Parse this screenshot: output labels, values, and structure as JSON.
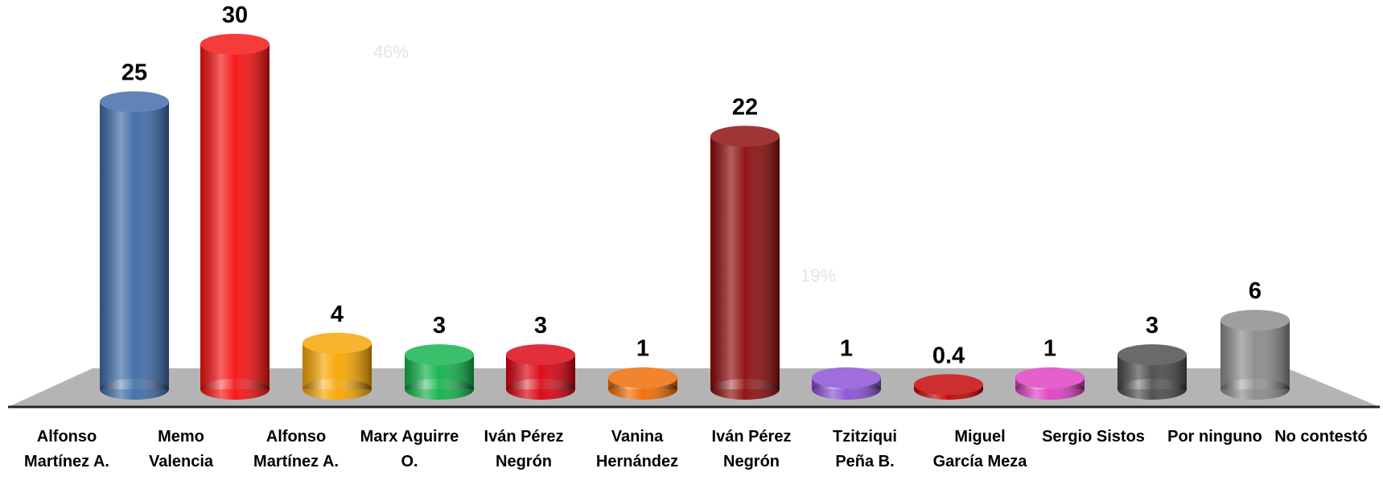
{
  "chart_data": {
    "type": "bar",
    "categories": [
      "Alfonso Martínez A.",
      "Memo Valencia",
      "Alfonso Martínez A.",
      "Marx Aguirre O.",
      "Iván Pérez Negrón",
      "Vanina Hernández",
      "Iván Pérez Negrón",
      "Tzitziqui Peña B.",
      "Miguel García Meza",
      "Sergio Sistos",
      "Por ninguno",
      "No contestó"
    ],
    "values": [
      25,
      30,
      4,
      3,
      3,
      1,
      22,
      1,
      0.4,
      1,
      3,
      6
    ],
    "colors": [
      "#3e6aa6",
      "#f51010",
      "#f7a400",
      "#10b14a",
      "#d9000f",
      "#f06a00",
      "#8c0a0a",
      "#8a4fd6",
      "#c40000",
      "#e03cc2",
      "#4a4a4a",
      "#8a8a8a"
    ],
    "background_labels": [
      "46%",
      "19%"
    ]
  }
}
